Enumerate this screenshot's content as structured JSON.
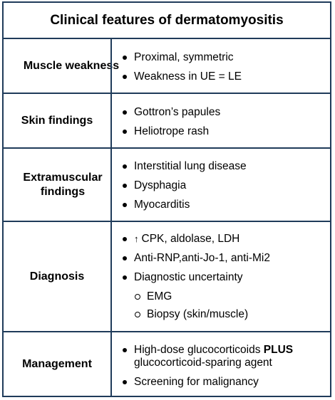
{
  "title": "Clinical features of dermatomyositis",
  "rows": [
    {
      "label": "Muscle weakness",
      "items": [
        "Proximal, symmetric",
        "Weakness in UE = LE"
      ]
    },
    {
      "label": "Skin findings",
      "items": [
        "Gottron’s papules",
        "Heliotrope rash"
      ]
    },
    {
      "label": "Extramuscular findings",
      "items": [
        "Interstitial lung disease",
        "Dysphagia",
        "Myocarditis"
      ]
    },
    {
      "label": "Diagnosis",
      "arrow": "↑",
      "items": [
        "CPK, aldolase, LDH",
        "Anti-RNP,anti-Jo-1, anti-Mi2",
        "Diagnostic uncertainty"
      ],
      "subitems": [
        "EMG",
        "Biopsy (skin/muscle)"
      ]
    },
    {
      "label": "Management",
      "items": [
        "High-dose glucocorticoids",
        "Screening for malignancy"
      ],
      "bold_word": "PLUS",
      "continuation": "glucocorticoid-sparing agent"
    }
  ],
  "colors": {
    "border": "#1f3b5a",
    "text": "#000000",
    "background": "#ffffff"
  }
}
